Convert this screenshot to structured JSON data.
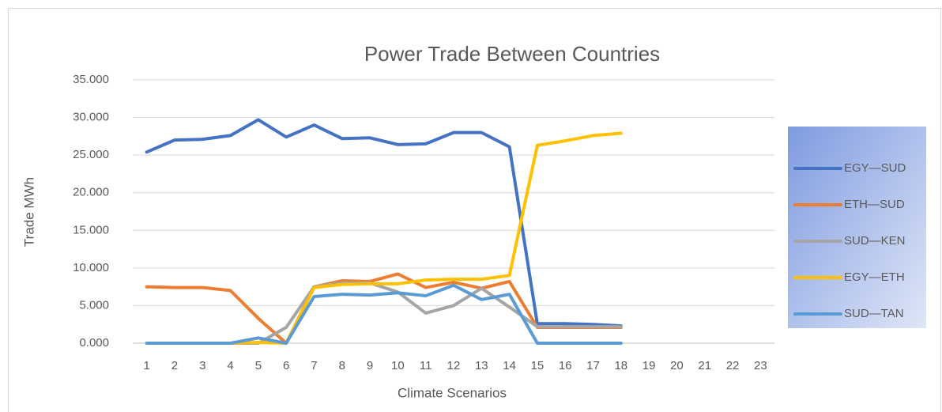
{
  "chart_data": {
    "type": "line",
    "title": "Power Trade Between Countries",
    "x_label": "Climate Scenarios",
    "y_label": "Trade MWh",
    "categories": [
      1,
      2,
      3,
      4,
      5,
      6,
      7,
      8,
      9,
      10,
      11,
      12,
      13,
      14,
      15,
      16,
      17,
      18,
      19,
      20,
      21,
      22,
      23
    ],
    "series": [
      {
        "name": "EGY—SUD",
        "color": "#4472c4",
        "values": [
          25400,
          27000,
          27100,
          27600,
          29700,
          27400,
          29000,
          27200,
          27300,
          26400,
          26500,
          28000,
          28000,
          26100,
          2600,
          2600,
          2500,
          2300,
          null,
          null,
          null,
          null,
          null
        ]
      },
      {
        "name": "ETH—SUD",
        "color": "#ed7d31",
        "values": [
          7500,
          7400,
          7400,
          7000,
          3300,
          0,
          7500,
          8300,
          8200,
          9200,
          7400,
          8100,
          7300,
          8200,
          2100,
          2100,
          2100,
          2100,
          null,
          null,
          null,
          null,
          null
        ]
      },
      {
        "name": "SUD—KEN",
        "color": "#a5a5a5",
        "values": [
          0,
          0,
          0,
          0,
          0,
          2100,
          7500,
          8000,
          8000,
          6800,
          4000,
          5000,
          7300,
          4800,
          2200,
          2200,
          2200,
          2200,
          null,
          null,
          null,
          null,
          null
        ]
      },
      {
        "name": "EGY—ETH",
        "color": "#ffc000",
        "values": [
          0,
          0,
          0,
          0,
          100,
          0,
          7400,
          7800,
          7900,
          7900,
          8400,
          8500,
          8500,
          9000,
          26300,
          26900,
          27600,
          27900,
          null,
          null,
          null,
          null,
          null
        ]
      },
      {
        "name": "SUD—TAN",
        "color": "#5b9bd5",
        "values": [
          0,
          0,
          0,
          0,
          700,
          0,
          6200,
          6500,
          6400,
          6700,
          6300,
          7700,
          5800,
          6500,
          0,
          0,
          0,
          0,
          null,
          null,
          null,
          null,
          null
        ]
      }
    ],
    "ylim": [
      0,
      35000
    ],
    "yticks": [
      {
        "value": 0,
        "label": "0.000"
      },
      {
        "value": 5000,
        "label": "5.000"
      },
      {
        "value": 10000,
        "label": "10.000"
      },
      {
        "value": 15000,
        "label": "15.000"
      },
      {
        "value": 20000,
        "label": "20.000"
      },
      {
        "value": 25000,
        "label": "25.000"
      },
      {
        "value": 30000,
        "label": "30.000"
      },
      {
        "value": 35000,
        "label": "35.000"
      }
    ],
    "grid": true,
    "legend": "right"
  }
}
